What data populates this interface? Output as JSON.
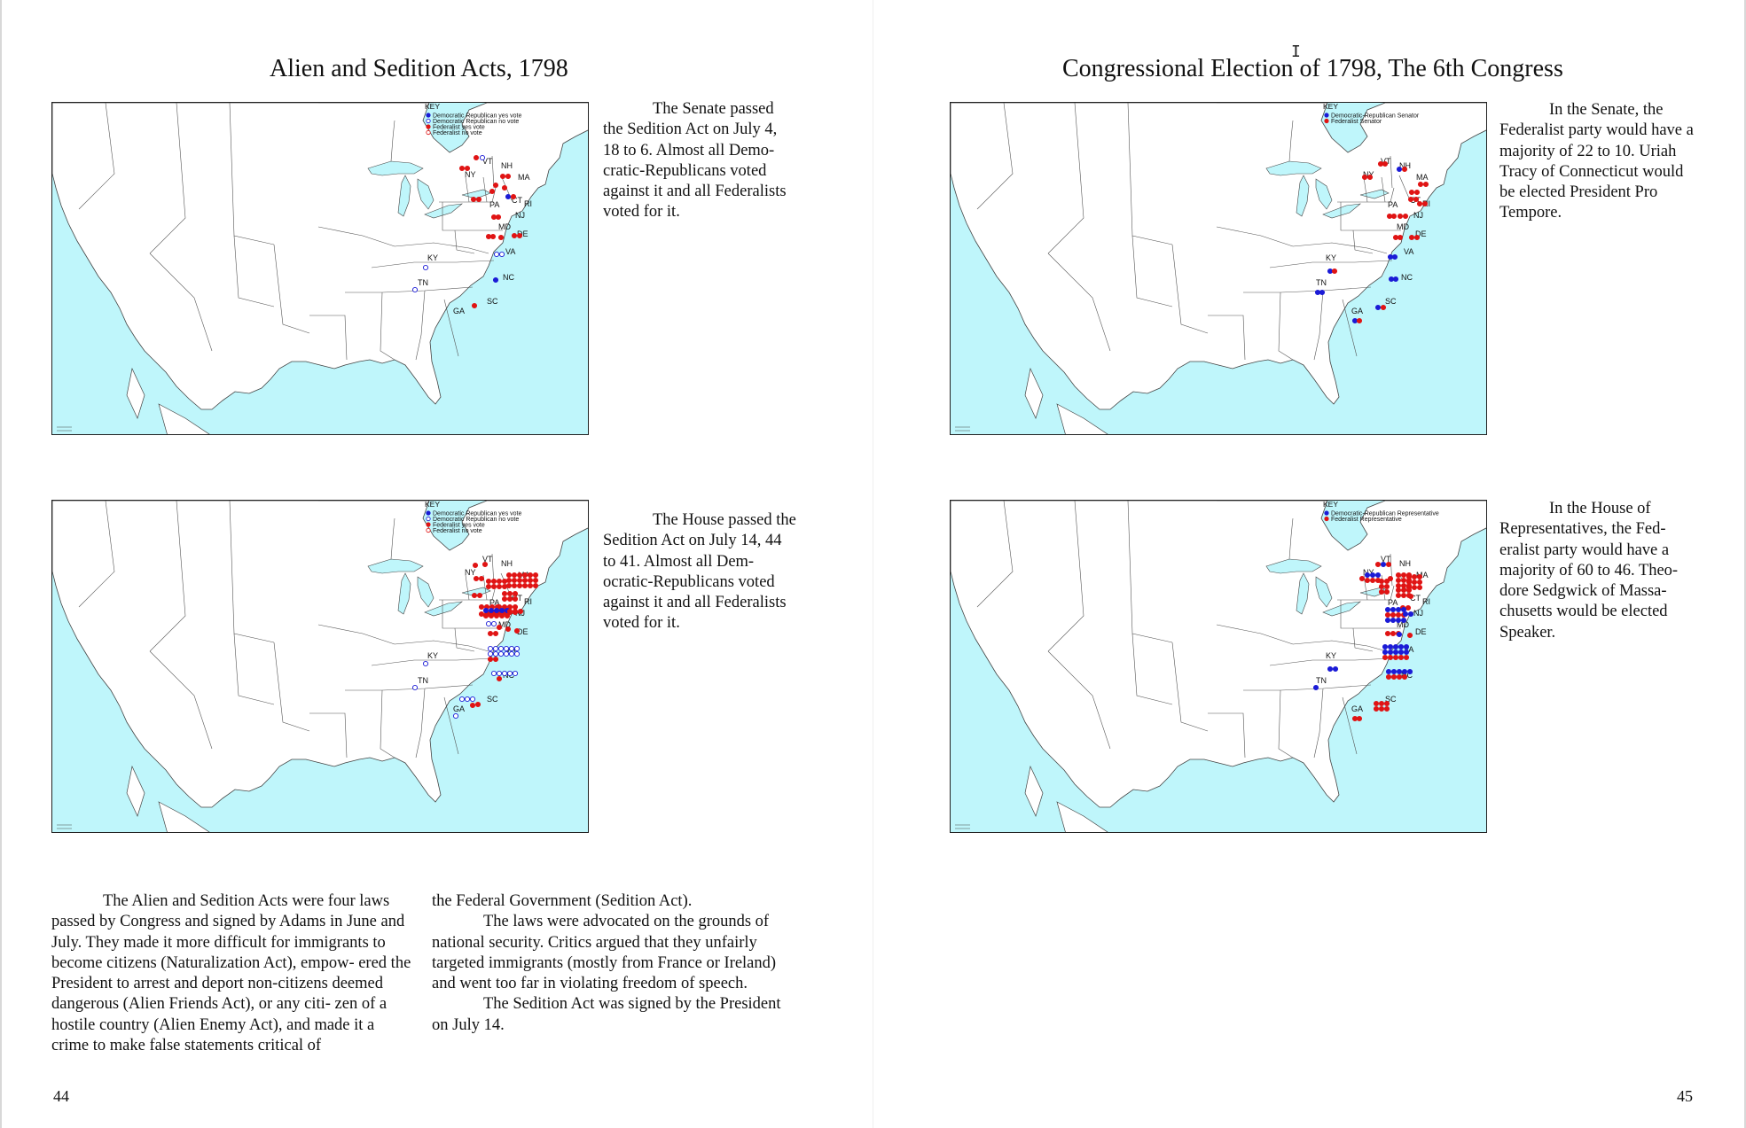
{
  "left_page": {
    "title": "Alien and Sedition Acts, 1798",
    "page_number": "44",
    "senate_map": {
      "key_heading": "KEY",
      "key_items": [
        {
          "label": "Democratic Republican yes vote",
          "color": "#1b1bd6",
          "filled": true
        },
        {
          "label": "Democratic Republican no vote",
          "color": "#1b1bd6",
          "filled": false
        },
        {
          "label": "Federalist yes vote",
          "color": "#e01414",
          "filled": true
        },
        {
          "label": "Federalist no vote",
          "color": "#e01414",
          "filled": false
        }
      ],
      "states": [
        "VT",
        "NH",
        "NY",
        "MA",
        "PA",
        "CT",
        "RI",
        "NJ",
        "MD",
        "DE",
        "VA",
        "KY",
        "NC",
        "TN",
        "SC",
        "GA"
      ]
    },
    "senate_caption": [
      "The Senate passed the Sedition Act on July 4, 18 to 6. Almost all Demo-",
      "cratic-Republicans voted against it and all Federalists voted for it."
    ],
    "house_map": {
      "key_heading": "KEY",
      "key_items": [
        {
          "label": "Democratic Republican yes vote",
          "color": "#1b1bd6",
          "filled": true
        },
        {
          "label": "Democratic Republican no vote",
          "color": "#1b1bd6",
          "filled": false
        },
        {
          "label": "Federalist yes vote",
          "color": "#e01414",
          "filled": true
        },
        {
          "label": "Federalist no vote",
          "color": "#e01414",
          "filled": false
        }
      ],
      "states": [
        "VT",
        "NH",
        "NY",
        "MA",
        "PA",
        "CT",
        "RI",
        "NJ",
        "MD",
        "DE",
        "VA",
        "KY",
        "NC",
        "TN",
        "SC",
        "GA"
      ]
    },
    "house_caption": [
      "The House passed the Sedition Act on July 14, 44 to 41. Almost all Dem-",
      "ocratic-Republicans voted against it and all Federalists voted for it."
    ],
    "body_col1": "The Alien and Sedition Acts were four laws passed by Congress and signed by Adams in June and July. They made it more difficult for immigrants to become citizens (Naturalization Act), empow- ered the President to arrest and deport non-citizens deemed dangerous (Alien Friends Act), or any citi- zen of a hostile country (Alien Enemy Act), and made it a crime to make false statements critical of",
    "body_col2_cont": "the Federal Government (Sedition Act).",
    "body_col2_p2": "The laws were advocated on the grounds of national security. Critics argued that they unfairly targeted immigrants (mostly from France or Ireland) and went too far in violating freedom of speech.",
    "body_col2_p3": "The Sedition Act was signed by the President on July 14."
  },
  "right_page": {
    "title": "Congressional Election of 1798, The 6th Congress",
    "page_number": "45",
    "senate_map": {
      "key_heading": "KEY",
      "key_items": [
        {
          "label": "Democratic-Republican Senator",
          "color": "#1b1bd6",
          "filled": true
        },
        {
          "label": "Federalist Senator",
          "color": "#e01414",
          "filled": true
        }
      ],
      "states": [
        "VT",
        "NH",
        "NY",
        "MA",
        "PA",
        "CT",
        "RI",
        "NJ",
        "MD",
        "DE",
        "VA",
        "KY",
        "NC",
        "TN",
        "SC",
        "GA"
      ]
    },
    "senate_caption": "In the Senate, the Federalist party would have a majority of 22 to 10. Uriah Tracy of Connecticut would be elected President Pro Tempore.",
    "house_map": {
      "key_heading": "KEY",
      "key_items": [
        {
          "label": "Democratic-Republican Representative",
          "color": "#1b1bd6",
          "filled": true
        },
        {
          "label": "Federalist Representative",
          "color": "#e01414",
          "filled": true
        }
      ],
      "states": [
        "VT",
        "NH",
        "NY",
        "MA",
        "PA",
        "CT",
        "RI",
        "NJ",
        "MD",
        "DE",
        "VA",
        "KY",
        "NC",
        "TN",
        "SC",
        "GA"
      ]
    },
    "house_caption": "In the House of Representatives, the Fed- eralist party would have a majority of 60 to 46. Theo- dore Sedgwick of Massa- chusetts would be elected Speaker."
  },
  "colors": {
    "water": "#bff6fb",
    "democratic_republican": "#1b1bd6",
    "federalist": "#e01414"
  }
}
